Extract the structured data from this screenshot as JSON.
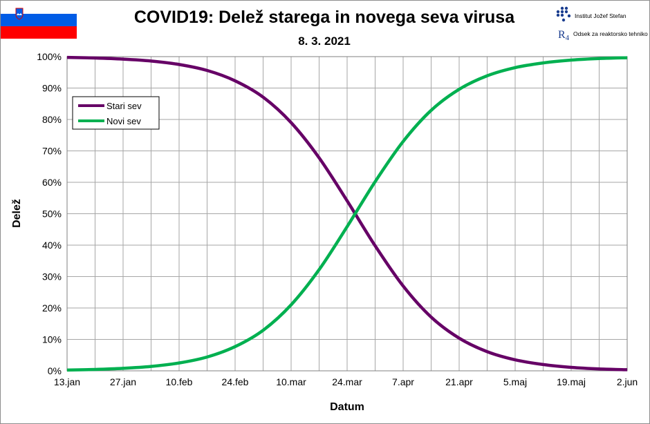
{
  "header": {
    "title": "COVID19: Delež starega in novega seva virusa",
    "subtitle": "8. 3. 2021",
    "logo1_text": "Institut Jožef Stefan",
    "logo2_text": "Odsek za reaktorsko tehniko",
    "flag_colors": [
      "#ffffff",
      "#005ce6",
      "#ff0000"
    ]
  },
  "chart_data": {
    "type": "line",
    "title": "COVID19: Delež starega in novega seva virusa",
    "subtitle": "8. 3. 2021",
    "xlabel": "Datum",
    "ylabel": "Delež",
    "x": [
      "13.jan",
      "20.jan",
      "27.jan",
      "3.feb",
      "10.feb",
      "17.feb",
      "24.feb",
      "3.mar",
      "10.mar",
      "17.mar",
      "24.mar",
      "31.mar",
      "7.apr",
      "14.apr",
      "21.apr",
      "28.apr",
      "5.maj",
      "12.maj",
      "19.maj",
      "26.maj",
      "2.jun"
    ],
    "xticks": [
      "13.jan",
      "27.jan",
      "10.feb",
      "24.feb",
      "10.mar",
      "24.mar",
      "7.apr",
      "21.apr",
      "5.maj",
      "19.maj",
      "2.jun"
    ],
    "yticks": [
      "0%",
      "10%",
      "20%",
      "30%",
      "40%",
      "50%",
      "60%",
      "70%",
      "80%",
      "90%",
      "100%"
    ],
    "ylim": [
      0,
      100
    ],
    "grid": true,
    "legend_position": "top-left",
    "series": [
      {
        "name": "Stari sev",
        "color": "#660066",
        "values": [
          99.75,
          99.55,
          99.2,
          98.6,
          97.5,
          95.6,
          92.3,
          87.1,
          79.0,
          67.8,
          54.1,
          39.8,
          27.0,
          17.1,
          10.4,
          6.1,
          3.5,
          2.0,
          1.1,
          0.6,
          0.35
        ]
      },
      {
        "name": "Novi sev",
        "color": "#00b050",
        "values": [
          0.25,
          0.45,
          0.8,
          1.4,
          2.5,
          4.4,
          7.7,
          12.9,
          21.0,
          32.2,
          45.9,
          60.2,
          73.0,
          82.9,
          89.6,
          93.9,
          96.5,
          98.0,
          98.9,
          99.4,
          99.65
        ]
      }
    ]
  }
}
